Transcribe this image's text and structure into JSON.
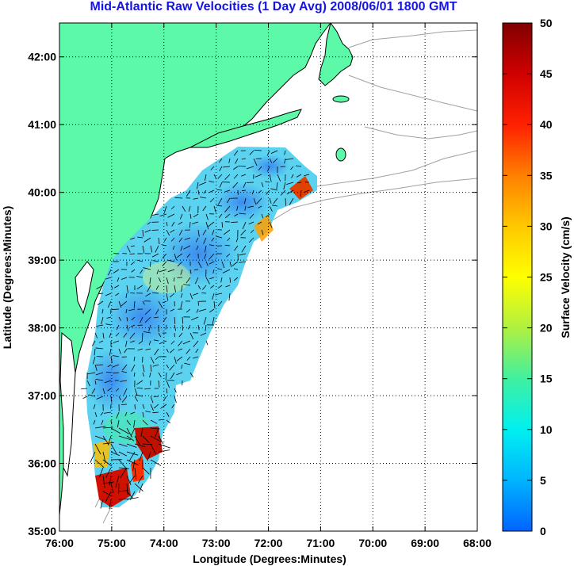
{
  "title": "Mid-Atlantic Raw Velocities (1 Day Avg) 2008/06/01 1800 GMT",
  "map": {
    "xlabel": "Longitude (Degrees:Minutes)",
    "ylabel": "Latitude (Degrees:Minutes)",
    "x_ticks": [
      "76:00",
      "75:00",
      "74:00",
      "73:00",
      "72:00",
      "71:00",
      "70:00",
      "69:00",
      "68:00"
    ],
    "y_ticks": [
      "42:00",
      "41:00",
      "40:00",
      "39:00",
      "38:00",
      "37:00",
      "36:00",
      "35:00"
    ],
    "xlim": [
      -76,
      -68
    ],
    "ylim": [
      35,
      42.5
    ],
    "grid": true,
    "land_color": "#5cfaa8",
    "coast_color": "#000000",
    "bathymetry_color": "#a0a0a0"
  },
  "colorbar": {
    "label": "Surface Velocity (cm/s)",
    "ticks": [
      "50",
      "45",
      "40",
      "35",
      "30",
      "25",
      "20",
      "15",
      "10",
      "5",
      "0"
    ],
    "range": [
      0,
      50
    ],
    "colors": [
      "#0064ff",
      "#00b4ff",
      "#00f0f0",
      "#40f0a0",
      "#b0f040",
      "#ffff00",
      "#ffc800",
      "#ff8000",
      "#ff2000",
      "#d00000",
      "#800000"
    ]
  }
}
